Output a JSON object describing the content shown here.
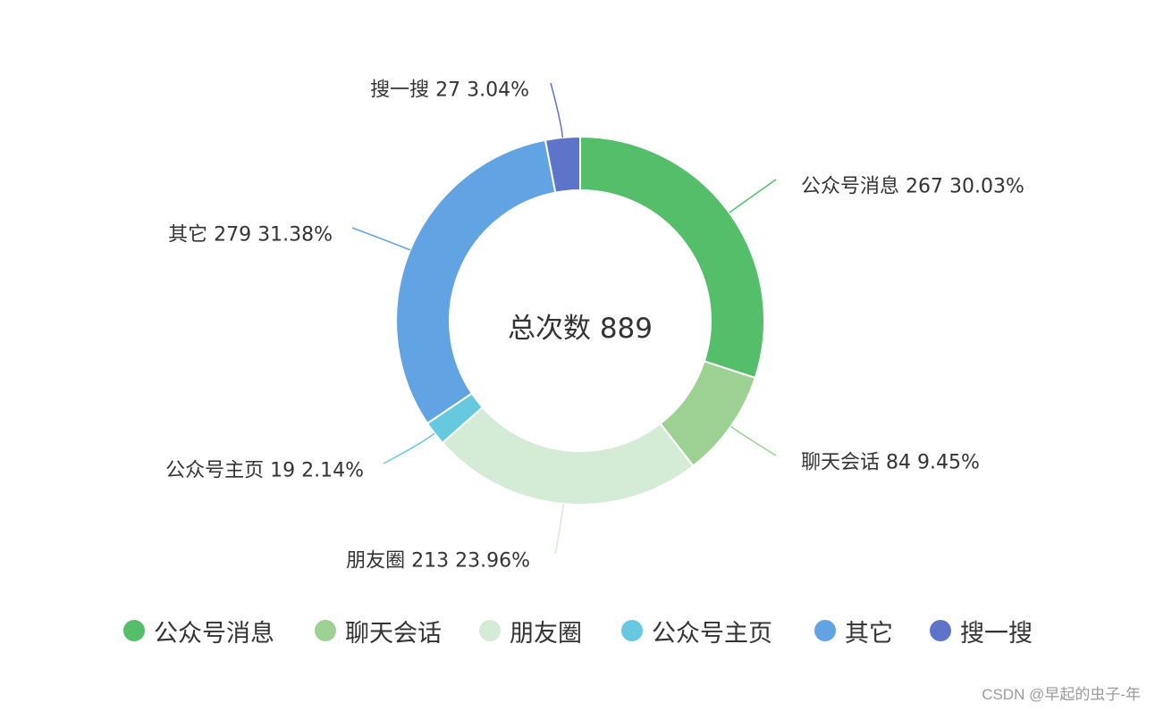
{
  "chart_data": {
    "type": "pie",
    "variant": "donut",
    "center_text": "总次数 889",
    "total": 889,
    "series": [
      {
        "name": "公众号消息",
        "value": 267,
        "percent": "30.03%",
        "color": "#55be6a"
      },
      {
        "name": "聊天会话",
        "value": 84,
        "percent": "9.45%",
        "color": "#9dd193"
      },
      {
        "name": "朋友圈",
        "value": 213,
        "percent": "23.96%",
        "color": "#d4ecd5"
      },
      {
        "name": "公众号主页",
        "value": 19,
        "percent": "2.14%",
        "color": "#67c9e0"
      },
      {
        "name": "其它",
        "value": 279,
        "percent": "31.38%",
        "color": "#62a3e3"
      },
      {
        "name": "搜一搜",
        "value": 27,
        "percent": "3.04%",
        "color": "#5e74c9"
      }
    ],
    "legend_position": "bottom"
  },
  "watermark": "CSDN @早起的虫子-年"
}
